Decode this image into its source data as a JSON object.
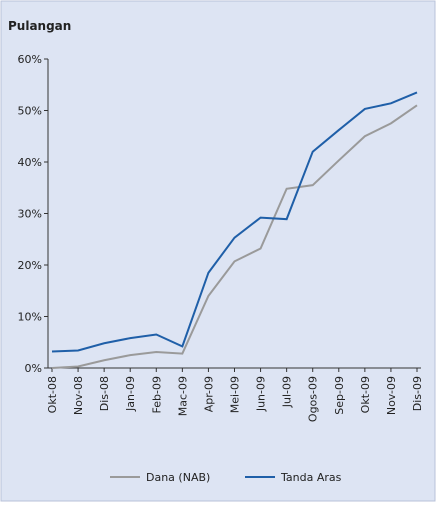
{
  "chart_data": {
    "type": "line",
    "title": "Pulangan",
    "categories": [
      "Okt-08",
      "Nov-08",
      "Dis-08",
      "Jan-09",
      "Feb-09",
      "Mac-09",
      "Apr-09",
      "Mei-09",
      "Jun-09",
      "Jul-09",
      "Ogos-09",
      "Sep-09",
      "Okt-09",
      "Nov-09",
      "Dis-09"
    ],
    "series": [
      {
        "name": "Dana (NAB)",
        "color": "#9a9a9a",
        "values": [
          0,
          0.3,
          1.5,
          2.5,
          3.1,
          2.8,
          14.0,
          20.7,
          23.2,
          34.8,
          35.5,
          40.3,
          45.0,
          47.5,
          51.0
        ]
      },
      {
        "name": "Tanda Aras",
        "color": "#1f5fa8",
        "values": [
          3.2,
          3.4,
          4.8,
          5.8,
          6.5,
          4.2,
          18.5,
          25.3,
          29.2,
          28.9,
          42.0,
          46.2,
          50.3,
          51.4,
          53.5
        ]
      }
    ],
    "ylim": [
      0,
      60
    ],
    "yticks": [
      {
        "value": 0,
        "label": "0%"
      },
      {
        "value": 10,
        "label": "10%"
      },
      {
        "value": 20,
        "label": "20%"
      },
      {
        "value": 30,
        "label": "30%"
      },
      {
        "value": 40,
        "label": "40%"
      },
      {
        "value": 50,
        "label": "50%"
      },
      {
        "value": 60,
        "label": "60%"
      }
    ],
    "legend": "bottom"
  }
}
